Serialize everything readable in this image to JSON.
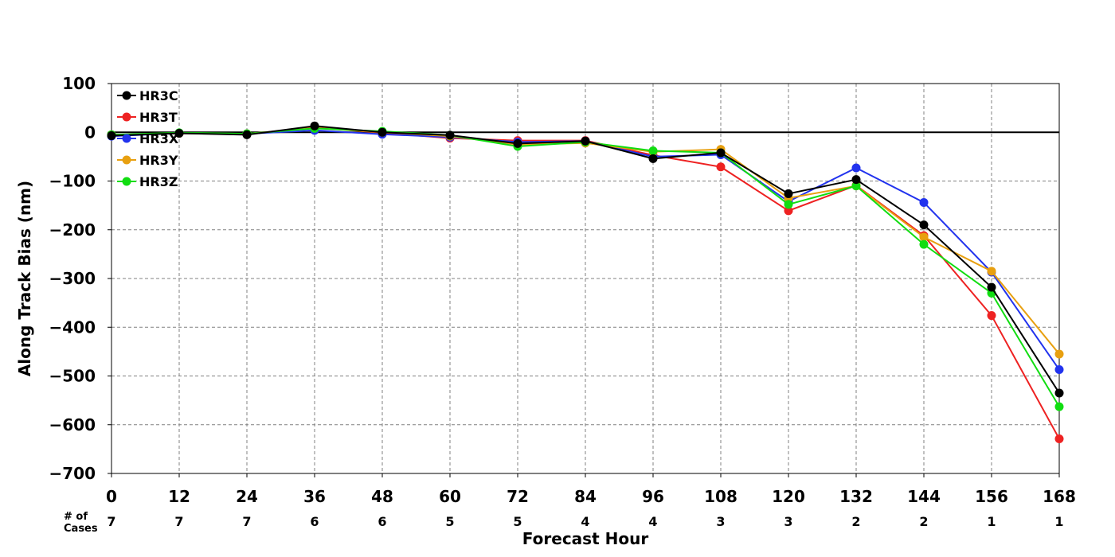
{
  "chart_data": {
    "type": "line",
    "xlabel": "Forecast Hour",
    "ylabel": "Along Track Bias (nm)",
    "x": [
      0,
      12,
      24,
      36,
      48,
      60,
      72,
      84,
      96,
      108,
      120,
      132,
      144,
      156,
      168
    ],
    "xlim": [
      0,
      168
    ],
    "ylim": [
      -700,
      100
    ],
    "yticks": [
      100,
      0,
      -100,
      -200,
      -300,
      -400,
      -500,
      -600,
      -700
    ],
    "ytick_labels": [
      "100",
      "0",
      "−100",
      "−200",
      "−300",
      "−400",
      "−500",
      "−600",
      "−700"
    ],
    "grid": true,
    "legend_position": "top-left",
    "cases_label": [
      "# of",
      "Cases"
    ],
    "cases": [
      "7",
      "7",
      "7",
      "6",
      "6",
      "5",
      "5",
      "4",
      "4",
      "3",
      "3",
      "2",
      "2",
      "1",
      "1"
    ],
    "series": [
      {
        "name": "HR3T",
        "color": "#ee2222",
        "values": [
          -5,
          -2,
          -4,
          10,
          -1,
          -12,
          -17,
          -17,
          -47,
          -71,
          -161,
          -109,
          -212,
          -376,
          -629
        ]
      },
      {
        "name": "HR3X",
        "color": "#2233ee",
        "values": [
          -8,
          -2,
          -3,
          4,
          -4,
          -10,
          -20,
          -18,
          -50,
          -46,
          -142,
          -73,
          -144,
          -287,
          -487
        ]
      },
      {
        "name": "HR3Y",
        "color": "#e8a010",
        "values": [
          -6,
          -2,
          -3,
          9,
          0,
          -8,
          -25,
          -22,
          -40,
          -35,
          -135,
          -110,
          -215,
          -285,
          -455
        ]
      },
      {
        "name": "HR3Z",
        "color": "#11dd11",
        "values": [
          -5,
          -1,
          -3,
          8,
          2,
          -6,
          -29,
          -20,
          -38,
          -42,
          -148,
          -110,
          -230,
          -330,
          -563
        ]
      },
      {
        "name": "HR3C",
        "color": "#000000",
        "values": [
          -7,
          -2,
          -5,
          13,
          0,
          -6,
          -23,
          -18,
          -54,
          -42,
          -126,
          -97,
          -190,
          -318,
          -535
        ]
      }
    ],
    "legend_order": [
      "HR3C",
      "HR3T",
      "HR3X",
      "HR3Y",
      "HR3Z"
    ]
  }
}
